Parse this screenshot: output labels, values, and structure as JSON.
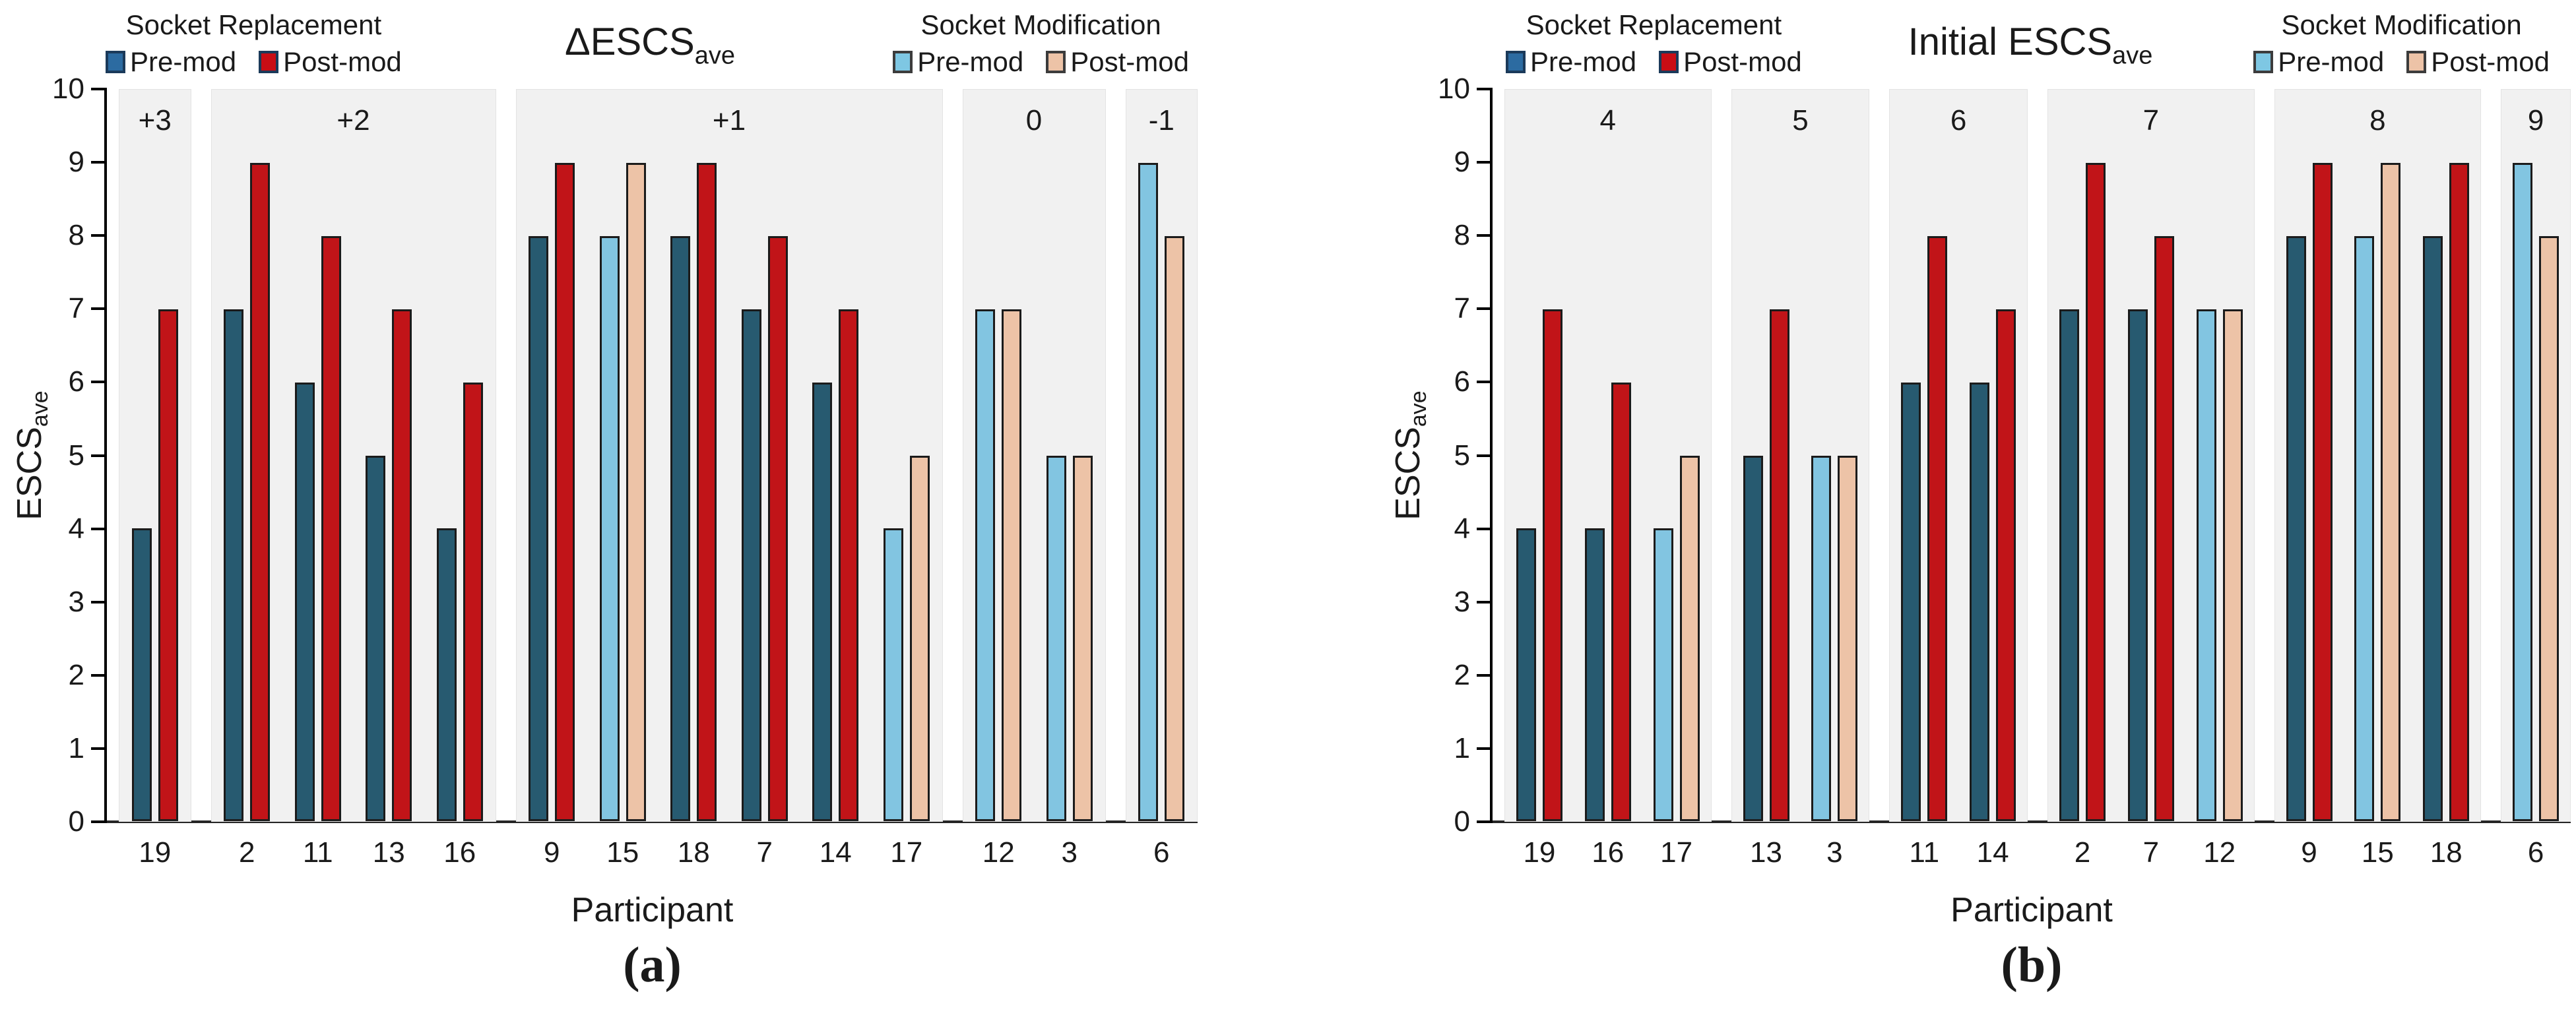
{
  "chart_data": [
    {
      "id": "a",
      "type": "bar",
      "title": {
        "text": "ΔESCS",
        "subscript": "ave"
      },
      "ylabel": {
        "text": "ESCS",
        "subscript": "ave"
      },
      "xlabel": "Participant",
      "caption": "(a)",
      "ylim": [
        0,
        10
      ],
      "y_ticks": [
        0,
        1,
        2,
        3,
        4,
        5,
        6,
        7,
        8,
        9,
        10
      ],
      "grid": false,
      "legends": [
        {
          "title": "Socket Replacement",
          "position": "top-left",
          "items": [
            {
              "label": "Pre-mod",
              "series": "replacement_pre",
              "swatch_color": "#2c6ba1",
              "swatch_border": "#1b3a5a"
            },
            {
              "label": "Post-mod",
              "series": "replacement_post",
              "swatch_color": "#c90d15",
              "swatch_border": "#1b3a5a"
            }
          ]
        },
        {
          "title": "Socket Modification",
          "position": "top-right",
          "items": [
            {
              "label": "Pre-mod",
              "series": "modification_pre",
              "swatch_color": "#7ec7e3",
              "swatch_border": "#3c3c3c"
            },
            {
              "label": "Post-mod",
              "series": "modification_post",
              "swatch_color": "#edc3a7",
              "swatch_border": "#3c3c3c"
            }
          ]
        }
      ],
      "series_colors": {
        "replacement_pre": "#275a70",
        "replacement_post": "#c11418",
        "modification_pre": "#82c5e1",
        "modification_post": "#edc3a7",
        "bar_border": "#1b1b1b",
        "panel_background": "#f1f1f1"
      },
      "groups": [
        {
          "label": "+3",
          "participants": [
            {
              "id": "19",
              "procedure": "replacement",
              "pre": 4,
              "post": 7
            }
          ]
        },
        {
          "label": "+2",
          "participants": [
            {
              "id": "2",
              "procedure": "replacement",
              "pre": 7,
              "post": 9
            },
            {
              "id": "11",
              "procedure": "replacement",
              "pre": 6,
              "post": 8
            },
            {
              "id": "13",
              "procedure": "replacement",
              "pre": 5,
              "post": 7
            },
            {
              "id": "16",
              "procedure": "replacement",
              "pre": 4,
              "post": 6
            }
          ]
        },
        {
          "label": "+1",
          "participants": [
            {
              "id": "9",
              "procedure": "replacement",
              "pre": 8,
              "post": 9
            },
            {
              "id": "15",
              "procedure": "modification",
              "pre": 8,
              "post": 9
            },
            {
              "id": "18",
              "procedure": "replacement",
              "pre": 8,
              "post": 9
            },
            {
              "id": "7",
              "procedure": "replacement",
              "pre": 7,
              "post": 8
            },
            {
              "id": "14",
              "procedure": "replacement",
              "pre": 6,
              "post": 7
            },
            {
              "id": "17",
              "procedure": "modification",
              "pre": 4,
              "post": 5
            }
          ]
        },
        {
          "label": "0",
          "participants": [
            {
              "id": "12",
              "procedure": "modification",
              "pre": 7,
              "post": 7
            },
            {
              "id": "3",
              "procedure": "modification",
              "pre": 5,
              "post": 5
            }
          ]
        },
        {
          "label": "-1",
          "participants": [
            {
              "id": "6",
              "procedure": "modification",
              "pre": 9,
              "post": 8
            }
          ]
        }
      ]
    },
    {
      "id": "b",
      "type": "bar",
      "title": {
        "text": "Initial ESCS",
        "subscript": "ave"
      },
      "ylabel": {
        "text": "ESCS",
        "subscript": "ave"
      },
      "xlabel": "Participant",
      "caption": "(b)",
      "ylim": [
        0,
        10
      ],
      "y_ticks": [
        0,
        1,
        2,
        3,
        4,
        5,
        6,
        7,
        8,
        9,
        10
      ],
      "grid": false,
      "legends": [
        {
          "title": "Socket Replacement",
          "position": "top-left",
          "items": [
            {
              "label": "Pre-mod",
              "series": "replacement_pre",
              "swatch_color": "#2c6ba1",
              "swatch_border": "#1b3a5a"
            },
            {
              "label": "Post-mod",
              "series": "replacement_post",
              "swatch_color": "#c90d15",
              "swatch_border": "#1b3a5a"
            }
          ]
        },
        {
          "title": "Socket Modification",
          "position": "top-right",
          "items": [
            {
              "label": "Pre-mod",
              "series": "modification_pre",
              "swatch_color": "#7ec7e3",
              "swatch_border": "#3c3c3c"
            },
            {
              "label": "Post-mod",
              "series": "modification_post",
              "swatch_color": "#edc3a7",
              "swatch_border": "#3c3c3c"
            }
          ]
        }
      ],
      "series_colors": {
        "replacement_pre": "#275a70",
        "replacement_post": "#c11418",
        "modification_pre": "#82c5e1",
        "modification_post": "#edc3a7",
        "bar_border": "#1b1b1b",
        "panel_background": "#f1f1f1"
      },
      "groups": [
        {
          "label": "4",
          "participants": [
            {
              "id": "19",
              "procedure": "replacement",
              "pre": 4,
              "post": 7
            },
            {
              "id": "16",
              "procedure": "replacement",
              "pre": 4,
              "post": 6
            },
            {
              "id": "17",
              "procedure": "modification",
              "pre": 4,
              "post": 5
            }
          ]
        },
        {
          "label": "5",
          "participants": [
            {
              "id": "13",
              "procedure": "replacement",
              "pre": 5,
              "post": 7
            },
            {
              "id": "3",
              "procedure": "modification",
              "pre": 5,
              "post": 5
            }
          ]
        },
        {
          "label": "6",
          "participants": [
            {
              "id": "11",
              "procedure": "replacement",
              "pre": 6,
              "post": 8
            },
            {
              "id": "14",
              "procedure": "replacement",
              "pre": 6,
              "post": 7
            }
          ]
        },
        {
          "label": "7",
          "participants": [
            {
              "id": "2",
              "procedure": "replacement",
              "pre": 7,
              "post": 9
            },
            {
              "id": "7",
              "procedure": "replacement",
              "pre": 7,
              "post": 8
            },
            {
              "id": "12",
              "procedure": "modification",
              "pre": 7,
              "post": 7
            }
          ]
        },
        {
          "label": "8",
          "participants": [
            {
              "id": "9",
              "procedure": "replacement",
              "pre": 8,
              "post": 9
            },
            {
              "id": "15",
              "procedure": "modification",
              "pre": 8,
              "post": 9
            },
            {
              "id": "18",
              "procedure": "replacement",
              "pre": 8,
              "post": 9
            }
          ]
        },
        {
          "label": "9",
          "participants": [
            {
              "id": "6",
              "procedure": "modification",
              "pre": 9,
              "post": 8
            }
          ]
        }
      ]
    }
  ]
}
